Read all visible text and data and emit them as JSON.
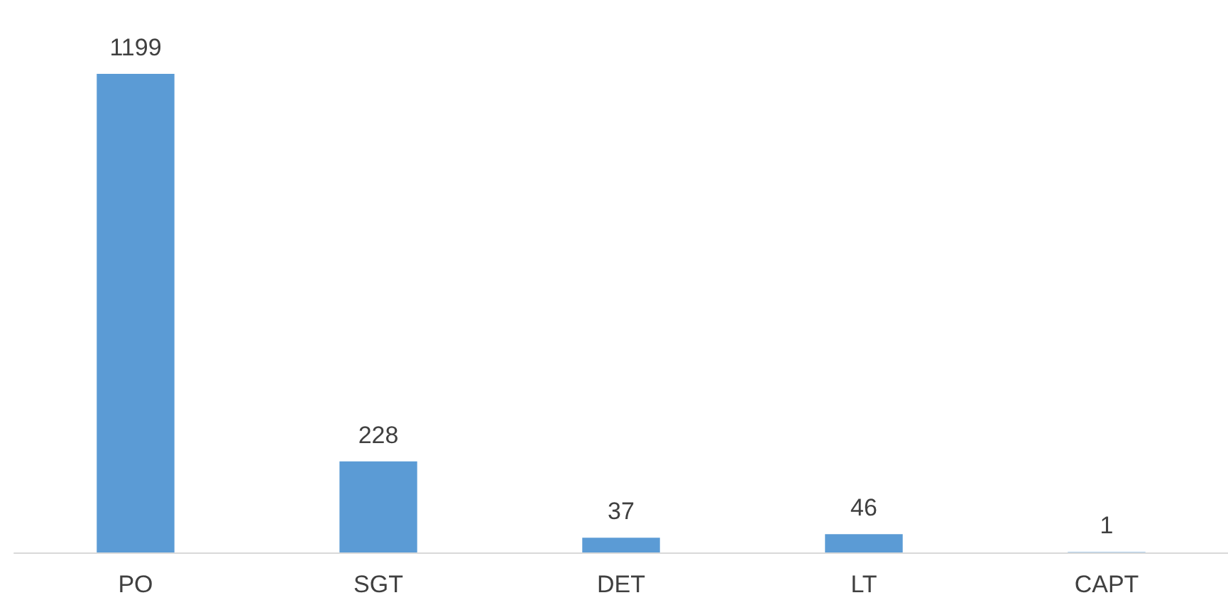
{
  "chart_data": {
    "type": "bar",
    "categories": [
      "PO",
      "SGT",
      "DET",
      "LT",
      "CAPT"
    ],
    "values": [
      1199,
      228,
      37,
      46,
      1
    ],
    "color": "#5b9bd5",
    "data_labels": true
  }
}
